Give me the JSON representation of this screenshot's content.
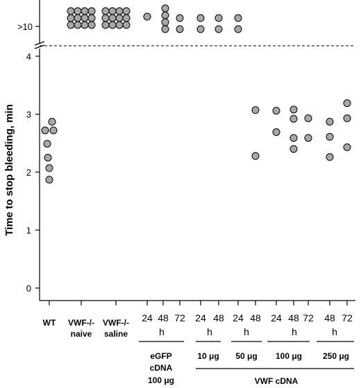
{
  "chart_data": {
    "type": "scatter",
    "ylabel": "Time to stop bleeding, min",
    "y_ticks": [
      "0",
      "1",
      "2",
      "3",
      "4"
    ],
    "y_break_label": ">10",
    "ylim": [
      0,
      4.2
    ],
    "x_groups": [
      {
        "label": "WT",
        "points": [
          1.87,
          2.07,
          2.25,
          2.49,
          2.72,
          2.72,
          2.87
        ]
      },
      {
        "label": "VWF-/-",
        "label2": "naive",
        "points_over_10": 12
      },
      {
        "label": "VWF-/-",
        "label2": "saline",
        "points_over_10": 12
      },
      {
        "label": "24",
        "points_over_10": 1
      },
      {
        "label": "48",
        "points_over_10": 4
      },
      {
        "label": "72",
        "points_over_10": 2
      },
      {
        "label": "24",
        "points_over_10": 2
      },
      {
        "label": "48",
        "points_over_10": 2
      },
      {
        "label": "24",
        "points_over_10": 2
      },
      {
        "label": "48",
        "points": [
          2.28,
          3.07
        ]
      },
      {
        "label": "24",
        "points": [
          2.69,
          3.06
        ]
      },
      {
        "label": "48",
        "points": [
          2.4,
          2.59,
          2.92,
          3.08
        ]
      },
      {
        "label": "72",
        "points": [
          2.59,
          2.93
        ]
      },
      {
        "label": "48",
        "points": [
          2.26,
          2.61,
          2.87
        ]
      },
      {
        "label": "72",
        "points": [
          2.43,
          2.93,
          3.19
        ]
      }
    ],
    "hour_unit": "h",
    "group_labels": {
      "egfp": [
        "eGFP",
        "cDNA",
        "100 μg"
      ],
      "doses": [
        "10 μg",
        "50 μg",
        "100 μg",
        "250 μg"
      ],
      "vwf": "VWF cDNA"
    }
  }
}
